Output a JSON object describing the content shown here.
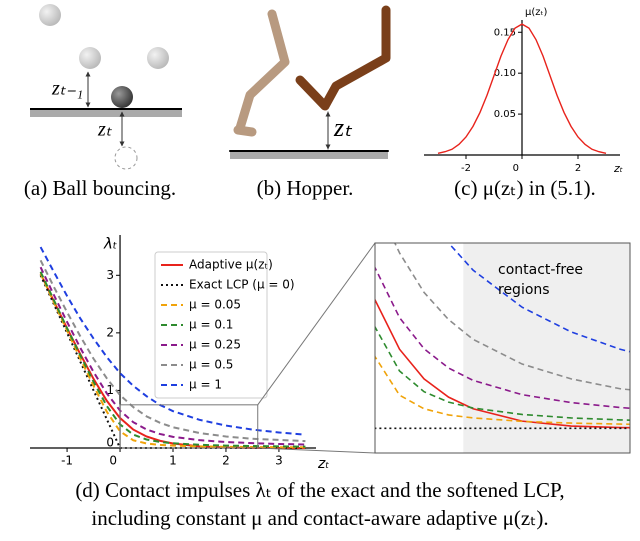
{
  "illustrations": {
    "a": {
      "upper_label": "zₜ₋₁",
      "lower_label": "zₜ"
    },
    "b": {
      "label": "zₜ"
    }
  },
  "captions": {
    "a": "(a) Ball bouncing.",
    "b": "(b) Hopper.",
    "c": "(c) μ(zₜ) in (5.1).",
    "d": [
      "(d) Contact impulses λₜ of the exact and the softened LCP,",
      "including constant μ and contact-aware adaptive μ(zₜ)."
    ]
  },
  "chart_data": [
    {
      "type": "line",
      "xlabel": "zₜ",
      "ylabel": "μ(zₜ)",
      "x": [
        -3,
        -2.75,
        -2.5,
        -2.25,
        -2,
        -1.75,
        -1.5,
        -1.25,
        -1,
        -0.75,
        -0.5,
        -0.25,
        0,
        0.25,
        0.5,
        0.75,
        1,
        1.25,
        1.5,
        1.75,
        2,
        2.25,
        2.5,
        2.75,
        3
      ],
      "series": [
        {
          "color": "#e8231c",
          "dash": "solid",
          "values": [
            0.002,
            0.004,
            0.007,
            0.013,
            0.022,
            0.035,
            0.052,
            0.073,
            0.097,
            0.121,
            0.141,
            0.155,
            0.16,
            0.155,
            0.141,
            0.121,
            0.097,
            0.073,
            0.052,
            0.035,
            0.022,
            0.013,
            0.007,
            0.004,
            0.002
          ]
        }
      ],
      "xlim": [
        -3.5,
        3.5
      ],
      "ylim": [
        0,
        0.165
      ],
      "xticks": [
        -2,
        0,
        2
      ],
      "yticks": [
        0.05,
        {
          "value": 0.1,
          "label": "0.10"
        },
        0.15
      ]
    },
    {
      "type": "line",
      "xlabel": "zₜ",
      "ylabel": "λₜ",
      "legend": "upper right",
      "x": [
        -1.5,
        -1.25,
        -1,
        -0.75,
        -0.5,
        -0.25,
        0,
        0.25,
        0.5,
        0.75,
        1,
        1.5,
        2,
        2.5,
        3,
        3.5
      ],
      "series": [
        {
          "name": "Adaptive μ(zₜ)",
          "color": "#e8231c",
          "dash": "solid",
          "values": [
            3.03,
            2.55,
            2.08,
            1.63,
            1.2,
            0.82,
            0.52,
            0.32,
            0.2,
            0.126,
            0.079,
            0.029,
            0.009,
            0.003,
            0.001,
            0
          ]
        },
        {
          "name": "Exact LCP (μ = 0)",
          "color": "#111111",
          "dash": "dotted",
          "values": [
            3,
            2.5,
            2,
            1.5,
            1,
            0.5,
            0,
            0,
            0,
            0,
            0,
            0,
            0,
            0,
            0,
            0
          ]
        },
        {
          "name": "μ = 0.05",
          "color": "#f0a30a",
          "dash": "dashed",
          "values": [
            3.03,
            2.53,
            2.04,
            1.55,
            1.08,
            0.63,
            0.29,
            0.134,
            0.079,
            0.054,
            0.042,
            0.028,
            0.021,
            0.017,
            0.014,
            0.012
          ]
        },
        {
          "name": "μ = 0.1",
          "color": "#2e8b2e",
          "dash": "dashed",
          "values": [
            3.06,
            2.57,
            2.08,
            1.61,
            1.15,
            0.73,
            0.41,
            0.232,
            0.148,
            0.106,
            0.082,
            0.056,
            0.042,
            0.034,
            0.028,
            0.024
          ]
        },
        {
          "name": "μ = 0.25",
          "color": "#8b1a8b",
          "dash": "dashed",
          "values": [
            3.14,
            2.66,
            2.19,
            1.74,
            1.32,
            0.95,
            0.65,
            0.448,
            0.322,
            0.244,
            0.194,
            0.136,
            0.104,
            0.084,
            0.07,
            0.06
          ]
        },
        {
          "name": "μ = 0.5",
          "color": "#8c8c8c",
          "dash": "dashed",
          "values": [
            3.26,
            2.8,
            2.36,
            1.94,
            1.55,
            1.21,
            0.92,
            0.71,
            0.55,
            0.44,
            0.36,
            0.26,
            0.2,
            0.16,
            0.14,
            0.12
          ]
        },
        {
          "name": "μ = 1",
          "color": "#1f3fe0",
          "dash": "dashed",
          "values": [
            3.49,
            3.06,
            2.64,
            2.25,
            1.9,
            1.58,
            1.3,
            1.08,
            0.9,
            0.75,
            0.64,
            0.49,
            0.39,
            0.32,
            0.27,
            0.23
          ]
        }
      ],
      "xlim": [
        -1.7,
        3.7
      ],
      "ylim": [
        0,
        3.7
      ],
      "xticks": [
        -1,
        0,
        1,
        2,
        3
      ],
      "yticks": [
        0,
        1,
        2,
        3
      ],
      "inset": {
        "xlim": [
          0,
          2.6
        ],
        "ylim": [
          -0.1,
          0.75
        ],
        "shade_xlim": [
          0.9,
          2.6
        ],
        "annotation": [
          "contact-free",
          "regions"
        ]
      }
    }
  ]
}
